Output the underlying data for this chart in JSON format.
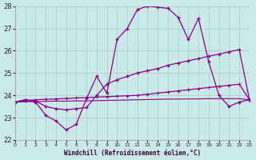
{
  "xlabel": "Windchill (Refroidissement éolien,°C)",
  "xlim": [
    0,
    23
  ],
  "ylim": [
    22,
    28
  ],
  "yticks": [
    22,
    23,
    24,
    25,
    26,
    27,
    28
  ],
  "xticks": [
    0,
    1,
    2,
    3,
    4,
    5,
    6,
    7,
    8,
    9,
    10,
    11,
    12,
    13,
    14,
    15,
    16,
    17,
    18,
    19,
    20,
    21,
    22,
    23
  ],
  "bg_color": "#cce9e9",
  "grid_color": "#aacccc",
  "line_color": "#880088",
  "line1_x": [
    0,
    1,
    2,
    3,
    4,
    5,
    6,
    7,
    8,
    9,
    10,
    11,
    12,
    13,
    14,
    15,
    16,
    17,
    18,
    19,
    20,
    21,
    22,
    23
  ],
  "line1_y": [
    23.7,
    23.8,
    23.7,
    23.1,
    22.85,
    22.45,
    22.7,
    23.85,
    24.85,
    24.1,
    26.5,
    27.0,
    27.85,
    28.0,
    27.95,
    27.9,
    27.5,
    26.5,
    27.45,
    25.5,
    24.0,
    23.5,
    23.7,
    23.8
  ],
  "line2_x": [
    0,
    1,
    2,
    3,
    4,
    5,
    6,
    7,
    8,
    9,
    10,
    11,
    12,
    13,
    14,
    15,
    16,
    17,
    18,
    19,
    20,
    21,
    22,
    23
  ],
  "line2_y": [
    23.7,
    23.8,
    23.75,
    23.5,
    23.4,
    23.35,
    23.4,
    23.45,
    24.0,
    24.5,
    24.7,
    24.85,
    25.0,
    25.1,
    25.2,
    25.35,
    25.45,
    25.55,
    25.65,
    25.75,
    25.85,
    25.95,
    26.05,
    23.8
  ],
  "line3_x": [
    0,
    1,
    2,
    3,
    4,
    5,
    6,
    7,
    8,
    9,
    10,
    11,
    12,
    13,
    14,
    15,
    16,
    17,
    18,
    19,
    20,
    21,
    22,
    23
  ],
  "line3_y": [
    23.7,
    23.75,
    23.8,
    23.82,
    23.84,
    23.86,
    23.88,
    23.9,
    23.92,
    23.94,
    23.96,
    23.98,
    24.0,
    24.05,
    24.1,
    24.15,
    24.2,
    24.25,
    24.3,
    24.35,
    24.4,
    24.45,
    24.5,
    23.8
  ],
  "line4_x": [
    0,
    1,
    2,
    3,
    4,
    5,
    6,
    7,
    8,
    9,
    10,
    11,
    12,
    13,
    14,
    15,
    16,
    17,
    18,
    19,
    20,
    21,
    22,
    23
  ],
  "line4_y": [
    23.7,
    23.71,
    23.72,
    23.73,
    23.74,
    23.74,
    23.75,
    23.75,
    23.76,
    23.77,
    23.78,
    23.79,
    23.8,
    23.81,
    23.82,
    23.83,
    23.83,
    23.84,
    23.84,
    23.85,
    23.85,
    23.85,
    23.85,
    23.8
  ]
}
